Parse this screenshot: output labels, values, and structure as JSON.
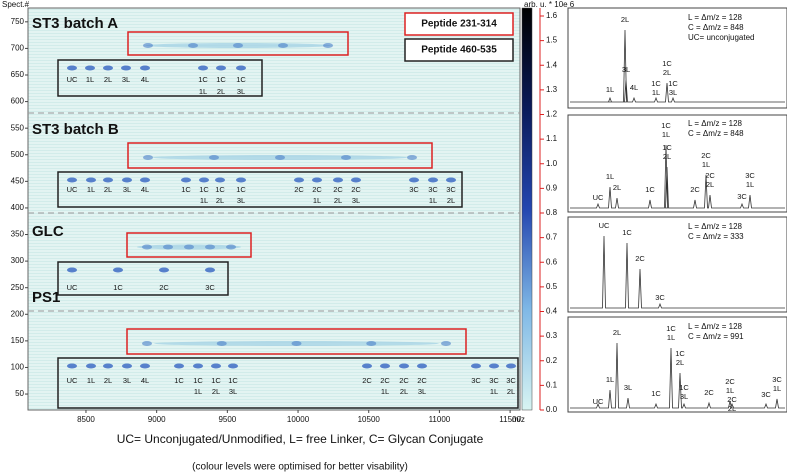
{
  "gel": {
    "y_label": "Spect.#",
    "x_label": "m/z",
    "xlim": [
      8090,
      11570
    ],
    "xticks": [
      8500,
      9000,
      9500,
      10000,
      10500,
      11000,
      11500
    ],
    "ylim": [
      20,
      776
    ],
    "yticks": [
      50,
      100,
      150,
      200,
      250,
      300,
      350,
      400,
      450,
      500,
      550,
      600,
      650,
      700,
      750
    ],
    "legend": [
      "Peptide 231-314",
      "Peptide 460-535"
    ],
    "panels": [
      {
        "title": "ST3 batch A",
        "peak_labels": [
          [
            "UC"
          ],
          [
            "1L"
          ],
          [
            "2L"
          ],
          [
            "3L"
          ],
          [
            "4L"
          ],
          [
            "1C",
            "1L"
          ],
          [
            "1C",
            "2L"
          ],
          [
            "1C",
            "3L"
          ]
        ]
      },
      {
        "title": "ST3 batch B",
        "peak_labels": [
          [
            "UC"
          ],
          [
            "1L"
          ],
          [
            "2L"
          ],
          [
            "3L"
          ],
          [
            "4L"
          ],
          [
            "1C"
          ],
          [
            "1C",
            "1L"
          ],
          [
            "1C",
            "2L"
          ],
          [
            "1C",
            "3L"
          ],
          [
            "2C"
          ],
          [
            "2C",
            "1L"
          ],
          [
            "2C",
            "2L"
          ],
          [
            "2C",
            "3L"
          ],
          [
            "3C"
          ],
          [
            "3C",
            "1L"
          ],
          [
            "3C",
            "2L"
          ]
        ]
      },
      {
        "title": "GLC",
        "peak_labels": [
          [
            "UC"
          ],
          [
            "1C"
          ],
          [
            "2C"
          ],
          [
            "3C"
          ]
        ]
      },
      {
        "title": "PS1",
        "peak_labels": [
          [
            "UC"
          ],
          [
            "1L"
          ],
          [
            "2L"
          ],
          [
            "3L"
          ],
          [
            "4L"
          ],
          [
            "1C"
          ],
          [
            "1C",
            "1L"
          ],
          [
            "1C",
            "2L"
          ],
          [
            "1C",
            "3L"
          ],
          [
            "2C"
          ],
          [
            "2C",
            "1L"
          ],
          [
            "2C",
            "2L"
          ],
          [
            "2C",
            "3L"
          ],
          [
            "3C"
          ],
          [
            "3C",
            "1L"
          ],
          [
            "3C",
            "2L"
          ]
        ]
      }
    ]
  },
  "colorbar": {
    "label": "arb. u. * 10e 6",
    "ylim": [
      0,
      1.6
    ],
    "yticks": [
      {
        "value": 0,
        "label": "0.0"
      },
      0.1,
      0.2,
      0.3,
      0.4,
      0.5,
      0.6,
      0.7,
      0.8,
      0.9,
      {
        "value": 1,
        "label": "1.0"
      },
      1.1,
      1.2,
      1.3,
      1.4,
      1.5,
      1.6
    ]
  },
  "spectra": [
    {
      "legend": [
        "L = Δm/z = 128",
        "C = Δm/z = 848",
        "UC= unconjugated"
      ],
      "peak_labels": [
        [
          "2L"
        ],
        [
          "1L"
        ],
        [
          "3L"
        ],
        [
          "4L"
        ],
        [
          "1C",
          "1L"
        ],
        [
          "1C",
          "2L"
        ],
        [
          "1C",
          "3L"
        ]
      ]
    },
    {
      "legend": [
        "L = Δm/z = 128",
        "C = Δm/z = 848"
      ],
      "peak_labels": [
        [
          "UC"
        ],
        [
          "1L"
        ],
        [
          "2L"
        ],
        [
          "1C"
        ],
        [
          "1C",
          "1L"
        ],
        [
          "1C",
          "2L"
        ],
        [
          "2C"
        ],
        [
          "2C",
          "1L"
        ],
        [
          "2C",
          "2L"
        ],
        [
          "3C"
        ],
        [
          "3C",
          "1L"
        ]
      ]
    },
    {
      "legend": [
        "L = Δm/z = 128",
        "C = Δm/z = 333"
      ],
      "peak_labels": [
        [
          "UC"
        ],
        [
          "1C"
        ],
        [
          "2C"
        ],
        [
          "3C"
        ]
      ]
    },
    {
      "legend": [
        "L = Δm/z = 128",
        "C = Δm/z = 991"
      ],
      "peak_labels": [
        [
          "UC"
        ],
        [
          "1L"
        ],
        [
          "2L"
        ],
        [
          "3L"
        ],
        [
          "1C"
        ],
        [
          "1C",
          "1L"
        ],
        [
          "1C",
          "2L"
        ],
        [
          "1C",
          "3L"
        ],
        [
          "2C"
        ],
        [
          "2C",
          "1L"
        ],
        [
          "2C",
          "2L"
        ],
        [
          "3C"
        ],
        [
          "3C",
          "1L"
        ]
      ]
    }
  ],
  "footer": {
    "note": "UC= Unconjugated/Unmodified, L=  free Linker, C= Glycan Conjugate",
    "caption": "(colour levels were optimised for better visability)"
  }
}
